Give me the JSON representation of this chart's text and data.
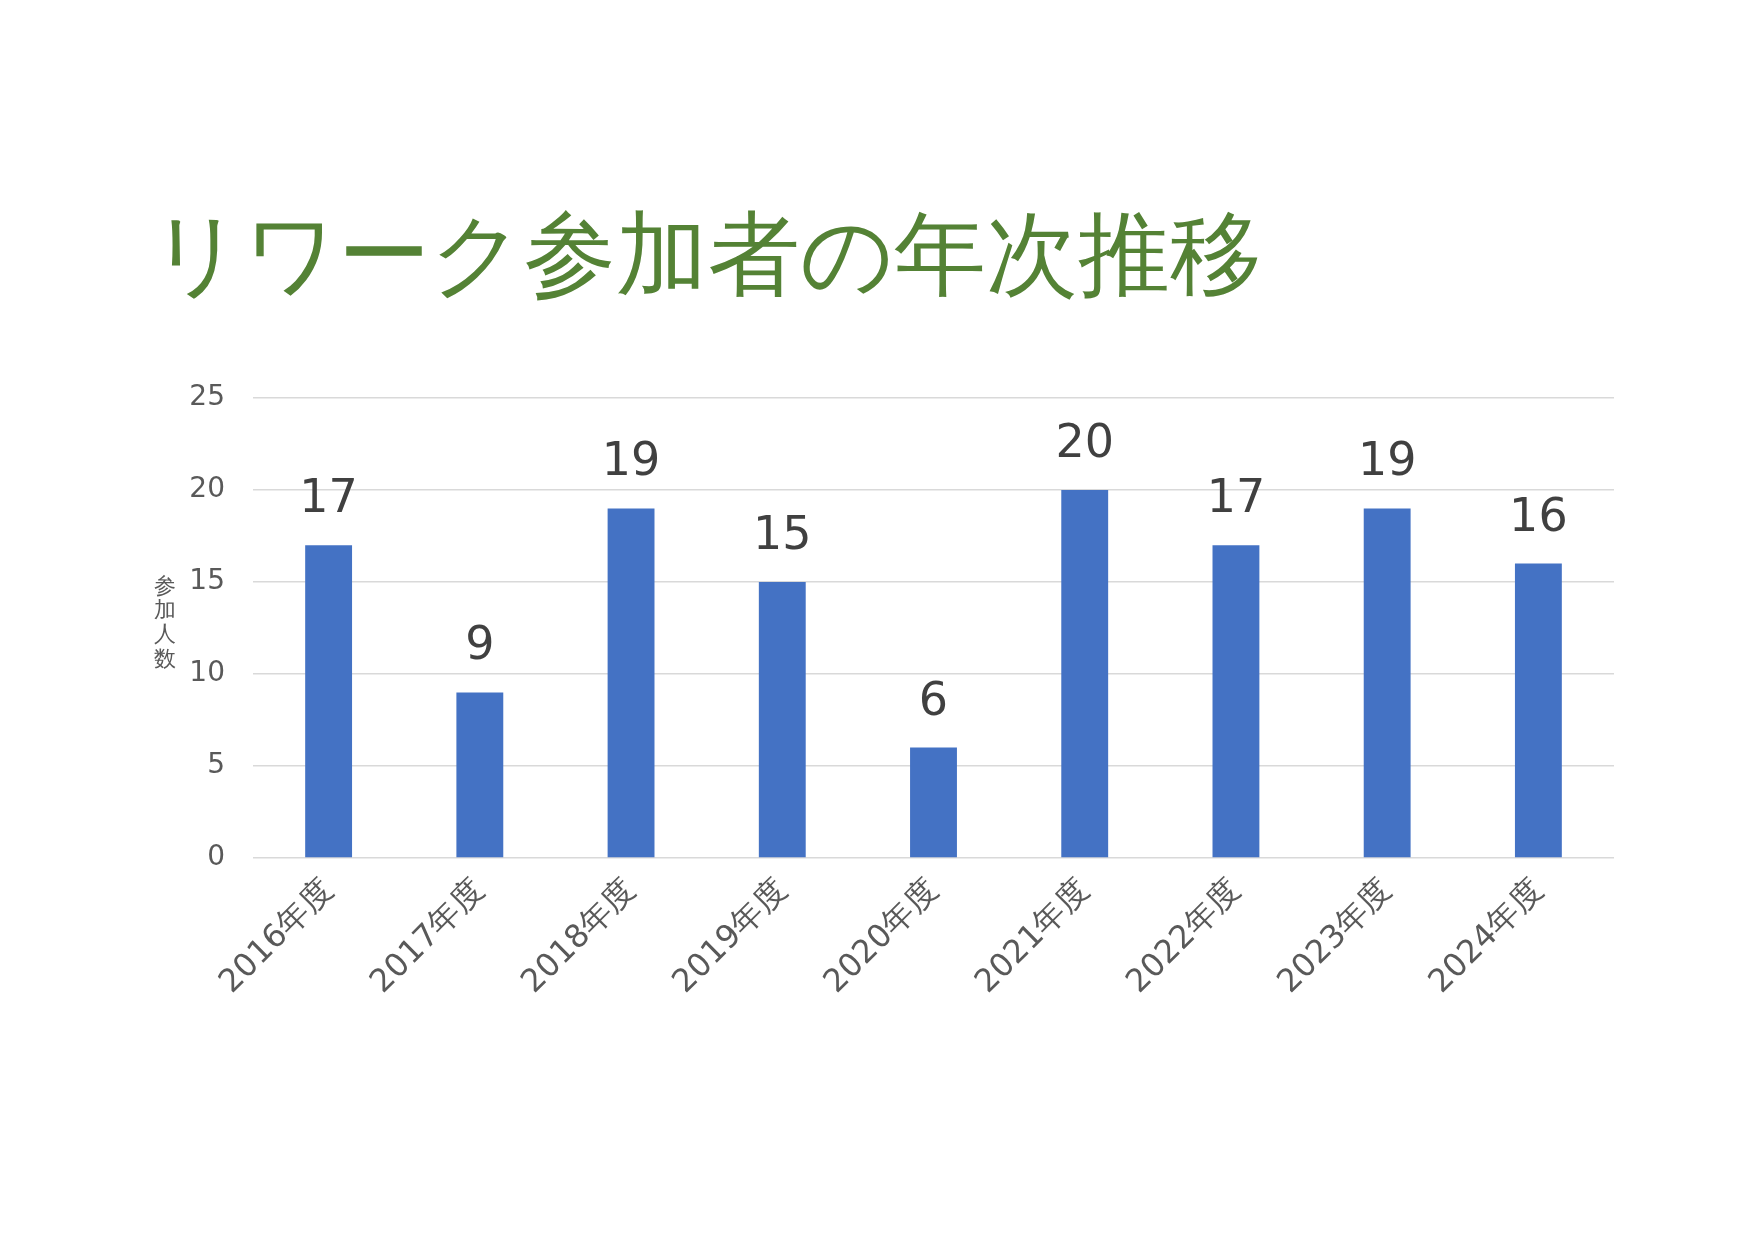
{
  "chart_data": {
    "type": "bar",
    "title": "リワーク参加者の年次推移",
    "ylabel": "参加人数",
    "categories": [
      "2016年度",
      "2017年度",
      "2018年度",
      "2019年度",
      "2020年度",
      "2021年度",
      "2022年度",
      "2023年度",
      "2024年度"
    ],
    "values": [
      17,
      9,
      19,
      15,
      6,
      20,
      17,
      19,
      16
    ],
    "color": "#4472c4",
    "ylim": [
      0,
      25
    ],
    "yticks": [
      0,
      5,
      10,
      15,
      20,
      25
    ],
    "grid": "y",
    "data_labels": true
  }
}
